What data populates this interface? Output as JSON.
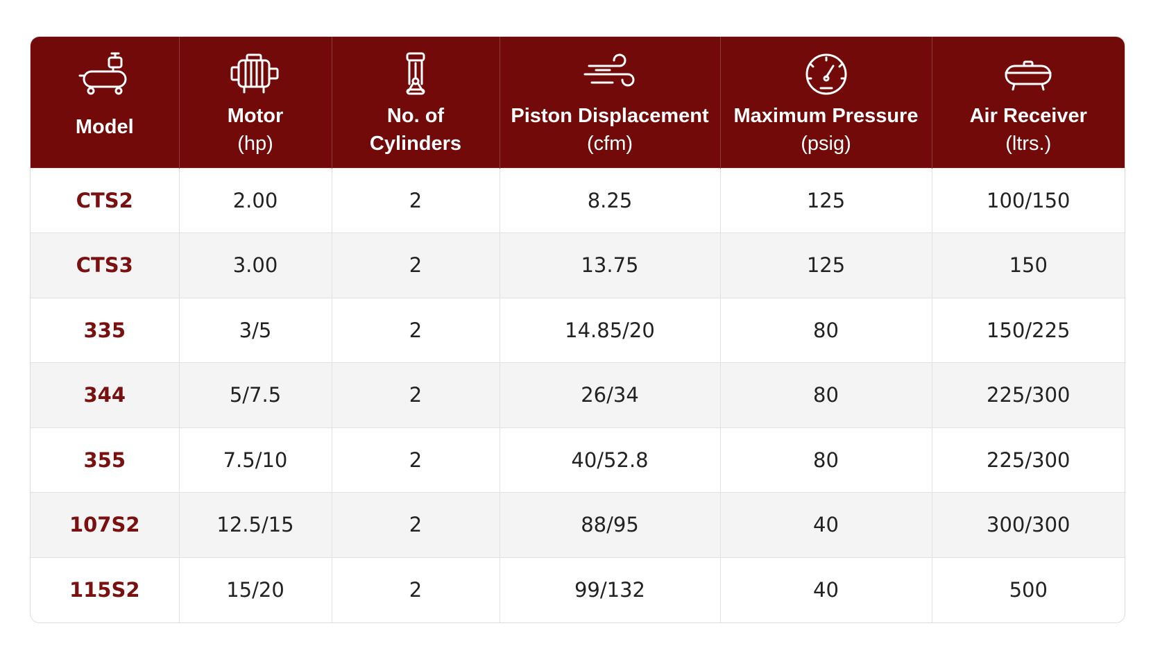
{
  "table": {
    "headers": [
      {
        "name": "Model",
        "unit": "",
        "icon": "compressor-icon"
      },
      {
        "name": "Motor",
        "unit": "(hp)",
        "icon": "motor-icon"
      },
      {
        "name": "No. of",
        "unit": "Cylinders",
        "icon": "cylinder-icon"
      },
      {
        "name": "Piston Displacement",
        "unit": "(cfm)",
        "icon": "wind-icon"
      },
      {
        "name": "Maximum Pressure",
        "unit": "(psig)",
        "icon": "gauge-icon"
      },
      {
        "name": "Air Receiver",
        "unit": "(ltrs.)",
        "icon": "tank-icon"
      }
    ],
    "rows": [
      [
        "CTS2",
        "2.00",
        "2",
        "8.25",
        "125",
        "100/150"
      ],
      [
        "CTS3",
        "3.00",
        "2",
        "13.75",
        "125",
        "150"
      ],
      [
        "335",
        "3/5",
        "2",
        "14.85/20",
        "80",
        "150/225"
      ],
      [
        "344",
        "5/7.5",
        "2",
        "26/34",
        "80",
        "225/300"
      ],
      [
        "355",
        "7.5/10",
        "2",
        "40/52.8",
        "80",
        "225/300"
      ],
      [
        "107S2",
        "12.5/15",
        "2",
        "88/95",
        "40",
        "300/300"
      ],
      [
        "115S2",
        "15/20",
        "2",
        "99/132",
        "40",
        "500"
      ]
    ]
  },
  "colors": {
    "header_bg": "#720a0a",
    "model_text": "#7a1010",
    "alt_row": "#f4f4f4"
  }
}
